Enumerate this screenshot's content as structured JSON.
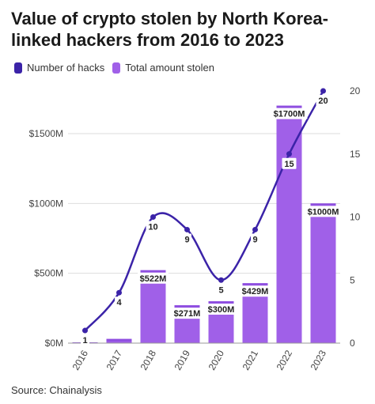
{
  "title": "Value of crypto stolen by North Korea-linked hackers from 2016 to 2023",
  "legend": {
    "line_label": "Number of hacks",
    "bar_label": "Total amount stolen"
  },
  "source": "Source: Chainalysis",
  "colors": {
    "line": "#3b23a8",
    "bar": "#a060e8",
    "bar_cap": "#8f4fe0",
    "grid": "#dddddd"
  },
  "chart_data": {
    "type": "bar",
    "categories": [
      "2016",
      "2017",
      "2018",
      "2019",
      "2020",
      "2021",
      "2022",
      "2023"
    ],
    "series": [
      {
        "name": "Total amount stolen",
        "type": "bar",
        "axis": "left",
        "values": [
          5,
          30,
          522,
          271,
          300,
          429,
          1700,
          1000
        ],
        "labels": [
          "",
          "",
          "$522M",
          "$271M",
          "$300M",
          "$429M",
          "$1700M",
          "$1000M"
        ]
      },
      {
        "name": "Number of hacks",
        "type": "line",
        "axis": "right",
        "values": [
          1,
          4,
          10,
          9,
          5,
          9,
          15,
          20
        ],
        "labels": [
          "1",
          "4",
          "10",
          "9",
          "5",
          "9",
          "15",
          "20"
        ]
      }
    ],
    "y_left": {
      "min": 0,
      "max": 1800,
      "ticks": [
        0,
        500,
        1000,
        1500
      ],
      "tick_labels": [
        "$0M",
        "$500M",
        "$1000M",
        "$1500M"
      ]
    },
    "y_right": {
      "min": 0,
      "max": 20,
      "ticks": [
        0,
        5,
        10,
        15,
        20
      ],
      "tick_labels": [
        "0",
        "5",
        "10",
        "15",
        "20"
      ]
    },
    "grid": true,
    "legend_position": "top-left"
  }
}
